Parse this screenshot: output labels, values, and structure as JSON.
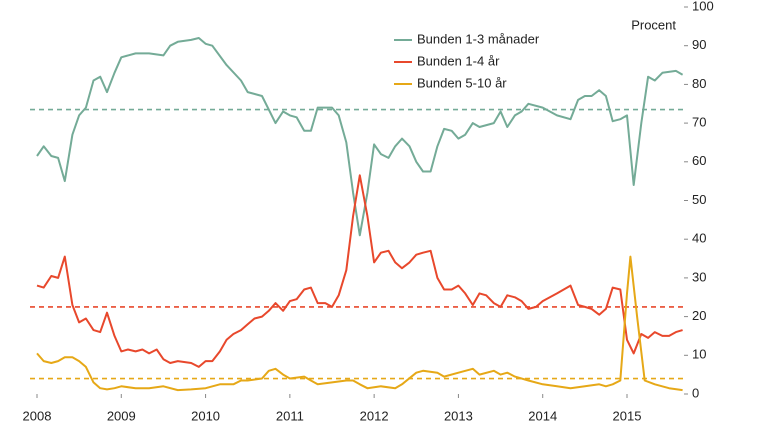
{
  "chart_data": {
    "type": "line",
    "y_label": "Procent",
    "xlim": [
      2008,
      2015.7
    ],
    "xticks": [
      2008,
      2009,
      2010,
      2011,
      2012,
      2013,
      2014,
      2015
    ],
    "ylim": [
      0,
      100
    ],
    "yticks": [
      0,
      10,
      20,
      30,
      40,
      50,
      60,
      70,
      80,
      90,
      100
    ],
    "legend": "top",
    "series": [
      {
        "name": "Bunden 1-3 månader",
        "color": "#74ab97",
        "x": [
          2008.0,
          2008.08,
          2008.17,
          2008.25,
          2008.33,
          2008.42,
          2008.5,
          2008.58,
          2008.67,
          2008.75,
          2008.83,
          2008.92,
          2009.0,
          2009.17,
          2009.33,
          2009.5,
          2009.58,
          2009.67,
          2009.83,
          2009.92,
          2010.0,
          2010.08,
          2010.25,
          2010.42,
          2010.5,
          2010.67,
          2010.83,
          2010.92,
          2011.0,
          2011.08,
          2011.17,
          2011.25,
          2011.33,
          2011.5,
          2011.58,
          2011.67,
          2011.75,
          2011.83,
          2011.92,
          2012.0,
          2012.08,
          2012.17,
          2012.25,
          2012.33,
          2012.42,
          2012.5,
          2012.58,
          2012.67,
          2012.75,
          2012.83,
          2012.92,
          2013.0,
          2013.08,
          2013.17,
          2013.25,
          2013.42,
          2013.5,
          2013.58,
          2013.67,
          2013.75,
          2013.83,
          2014.0,
          2014.17,
          2014.33,
          2014.42,
          2014.5,
          2014.58,
          2014.67,
          2014.75,
          2014.83,
          2014.92,
          2015.0,
          2015.08,
          2015.17,
          2015.25,
          2015.33,
          2015.42,
          2015.58,
          2015.66
        ],
        "values": [
          61.5,
          64,
          61.5,
          61,
          55,
          67,
          72,
          74,
          81,
          82,
          78,
          83,
          87,
          88,
          88,
          87.5,
          90,
          91,
          91.5,
          92,
          90.5,
          90,
          85,
          81,
          78,
          77,
          70,
          73,
          72,
          71.5,
          68,
          68,
          74,
          74,
          72,
          65,
          52,
          41,
          52,
          64.5,
          62,
          61,
          64,
          66,
          64,
          60,
          57.5,
          57.5,
          64,
          68.5,
          68,
          66,
          67,
          70,
          69,
          70,
          73,
          69,
          72,
          73,
          75,
          74,
          72,
          71,
          76,
          77,
          77,
          78.5,
          77,
          70.5,
          71,
          72,
          54,
          70,
          82,
          81,
          83,
          83.5,
          82.5
        ]
      },
      {
        "name": "Bunden 1-4 år",
        "color": "#e8482c",
        "x": [
          2008.0,
          2008.08,
          2008.17,
          2008.25,
          2008.33,
          2008.42,
          2008.5,
          2008.58,
          2008.67,
          2008.75,
          2008.83,
          2008.92,
          2009.0,
          2009.08,
          2009.17,
          2009.25,
          2009.33,
          2009.42,
          2009.5,
          2009.58,
          2009.67,
          2009.83,
          2009.92,
          2010.0,
          2010.08,
          2010.17,
          2010.25,
          2010.33,
          2010.42,
          2010.5,
          2010.58,
          2010.67,
          2010.75,
          2010.83,
          2010.92,
          2011.0,
          2011.08,
          2011.17,
          2011.25,
          2011.33,
          2011.42,
          2011.5,
          2011.58,
          2011.67,
          2011.75,
          2011.83,
          2011.92,
          2012.0,
          2012.08,
          2012.17,
          2012.25,
          2012.33,
          2012.42,
          2012.5,
          2012.58,
          2012.67,
          2012.75,
          2012.83,
          2012.92,
          2013.0,
          2013.08,
          2013.17,
          2013.25,
          2013.33,
          2013.42,
          2013.5,
          2013.58,
          2013.67,
          2013.75,
          2013.83,
          2013.92,
          2014.0,
          2014.17,
          2014.33,
          2014.42,
          2014.5,
          2014.58,
          2014.67,
          2014.75,
          2014.83,
          2014.92,
          2015.0,
          2015.08,
          2015.17,
          2015.25,
          2015.33,
          2015.42,
          2015.5,
          2015.58,
          2015.66
        ],
        "values": [
          28,
          27.5,
          30.5,
          30,
          35.5,
          23,
          18.5,
          19.5,
          16.5,
          16,
          21,
          15,
          11,
          11.5,
          11,
          11.5,
          10.5,
          11.5,
          9,
          8,
          8.5,
          8,
          7,
          8.5,
          8.5,
          11,
          14,
          15.5,
          16.5,
          18,
          19.5,
          20,
          21.5,
          23.5,
          21.5,
          24,
          24.5,
          27,
          27.5,
          23.5,
          23.5,
          22.5,
          25.5,
          32,
          46,
          56.5,
          46,
          34,
          36.5,
          37,
          34,
          32.5,
          34,
          36,
          36.5,
          37,
          30,
          27,
          27,
          28,
          26,
          23,
          26,
          25.5,
          23.5,
          22.5,
          25.5,
          25,
          24,
          22,
          22.5,
          24,
          26,
          28,
          23,
          22.5,
          22,
          20.5,
          22,
          27.5,
          27,
          14,
          10.5,
          15.5,
          14.5,
          16,
          15,
          15,
          16,
          16.5
        ]
      },
      {
        "name": "Bunden 5-10 år",
        "color": "#e6a817",
        "x": [
          2008.0,
          2008.08,
          2008.17,
          2008.25,
          2008.33,
          2008.42,
          2008.5,
          2008.58,
          2008.67,
          2008.75,
          2008.83,
          2008.92,
          2009.0,
          2009.17,
          2009.33,
          2009.5,
          2009.67,
          2009.83,
          2010.0,
          2010.17,
          2010.33,
          2010.42,
          2010.5,
          2010.67,
          2010.75,
          2010.83,
          2010.92,
          2011.0,
          2011.17,
          2011.25,
          2011.33,
          2011.5,
          2011.67,
          2011.75,
          2011.83,
          2011.92,
          2012.08,
          2012.25,
          2012.33,
          2012.5,
          2012.58,
          2012.75,
          2012.83,
          2013.0,
          2013.17,
          2013.25,
          2013.42,
          2013.5,
          2013.58,
          2013.67,
          2013.83,
          2014.0,
          2014.17,
          2014.33,
          2014.5,
          2014.67,
          2014.75,
          2014.83,
          2014.92,
          2015.0,
          2015.04,
          2015.12,
          2015.21,
          2015.33,
          2015.5,
          2015.66
        ],
        "values": [
          10.5,
          8.5,
          8,
          8.5,
          9.5,
          9.5,
          8.5,
          7,
          3,
          1.5,
          1.2,
          1.5,
          2,
          1.5,
          1.5,
          2,
          1,
          1.2,
          1.5,
          2.5,
          2.5,
          3.5,
          3.5,
          4,
          6,
          6.5,
          5,
          4,
          4.5,
          3.5,
          2.5,
          3,
          3.5,
          3.5,
          2.5,
          1.5,
          2,
          1.5,
          2.5,
          5.5,
          6,
          5.5,
          4.5,
          5.5,
          6.5,
          5,
          6,
          5,
          5.5,
          4.5,
          3.5,
          2.5,
          2,
          1.5,
          2,
          2.5,
          2,
          2.5,
          3.5,
          26,
          35.5,
          20,
          3.5,
          2.5,
          1.5,
          1
        ]
      }
    ],
    "reference_lines": [
      {
        "value": 73.5,
        "color": "#74ab97"
      },
      {
        "value": 22.5,
        "color": "#e8482c"
      },
      {
        "value": 4,
        "color": "#e6a817"
      }
    ]
  }
}
